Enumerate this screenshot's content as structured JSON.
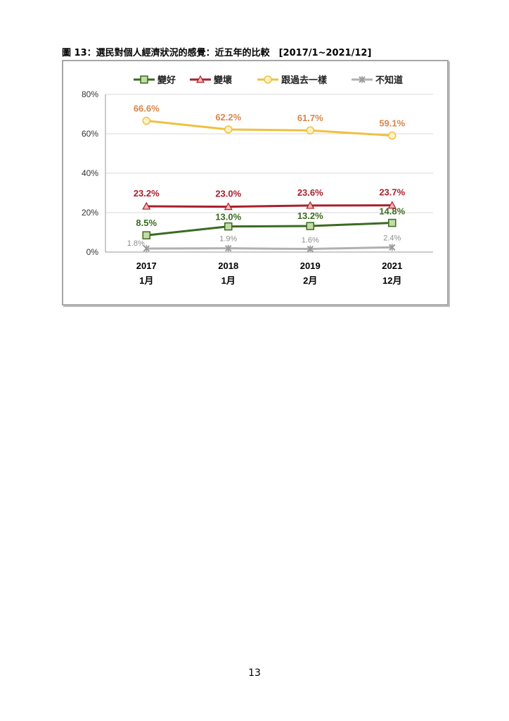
{
  "figure": {
    "title": "圖 13：選民對個人經濟狀況的感覺：近五年的比較　[2017/1~2021/12]"
  },
  "page": {
    "number": "13"
  },
  "chart_data": {
    "type": "line",
    "categories": [
      {
        "year": "2017",
        "month": "1月"
      },
      {
        "year": "2018",
        "month": "1月"
      },
      {
        "year": "2019",
        "month": "2月"
      },
      {
        "year": "2021",
        "month": "12月"
      }
    ],
    "ylim": [
      0,
      80
    ],
    "yticks": [
      0,
      20,
      40,
      60,
      80
    ],
    "ytick_labels": [
      "0%",
      "20%",
      "40%",
      "60%",
      "80%"
    ],
    "grid": true,
    "legend_position": "top",
    "series": [
      {
        "name": "變好",
        "values": [
          8.5,
          13.0,
          13.2,
          14.8
        ],
        "labels": [
          "8.5%",
          "13.0%",
          "13.2%",
          "14.8%"
        ],
        "color": "#3a6b1f",
        "marker_fill": "#c4dba8",
        "label_color": "#3a6b1f",
        "marker": "square"
      },
      {
        "name": "變壞",
        "values": [
          23.2,
          23.0,
          23.6,
          23.7
        ],
        "labels": [
          "23.2%",
          "23.0%",
          "23.6%",
          "23.7%"
        ],
        "color": "#a8202c",
        "marker_fill": "#f2b6b6",
        "label_color": "#a8202c",
        "marker": "triangle"
      },
      {
        "name": "跟過去一樣",
        "values": [
          66.6,
          62.2,
          61.7,
          59.1
        ],
        "labels": [
          "66.6%",
          "62.2%",
          "61.7%",
          "59.1%"
        ],
        "color": "#f0c040",
        "marker_fill": "#fff3c4",
        "label_color": "#d9854a",
        "marker": "circle"
      },
      {
        "name": "不知道",
        "values": [
          1.8,
          1.9,
          1.6,
          2.4
        ],
        "labels": [
          "1.8%",
          "1.9%",
          "1.6%",
          "2.4%"
        ],
        "color": "#b0b0b0",
        "marker_fill": "#d9d9d9",
        "label_color": "#8c8c8c",
        "marker": "x"
      }
    ]
  }
}
